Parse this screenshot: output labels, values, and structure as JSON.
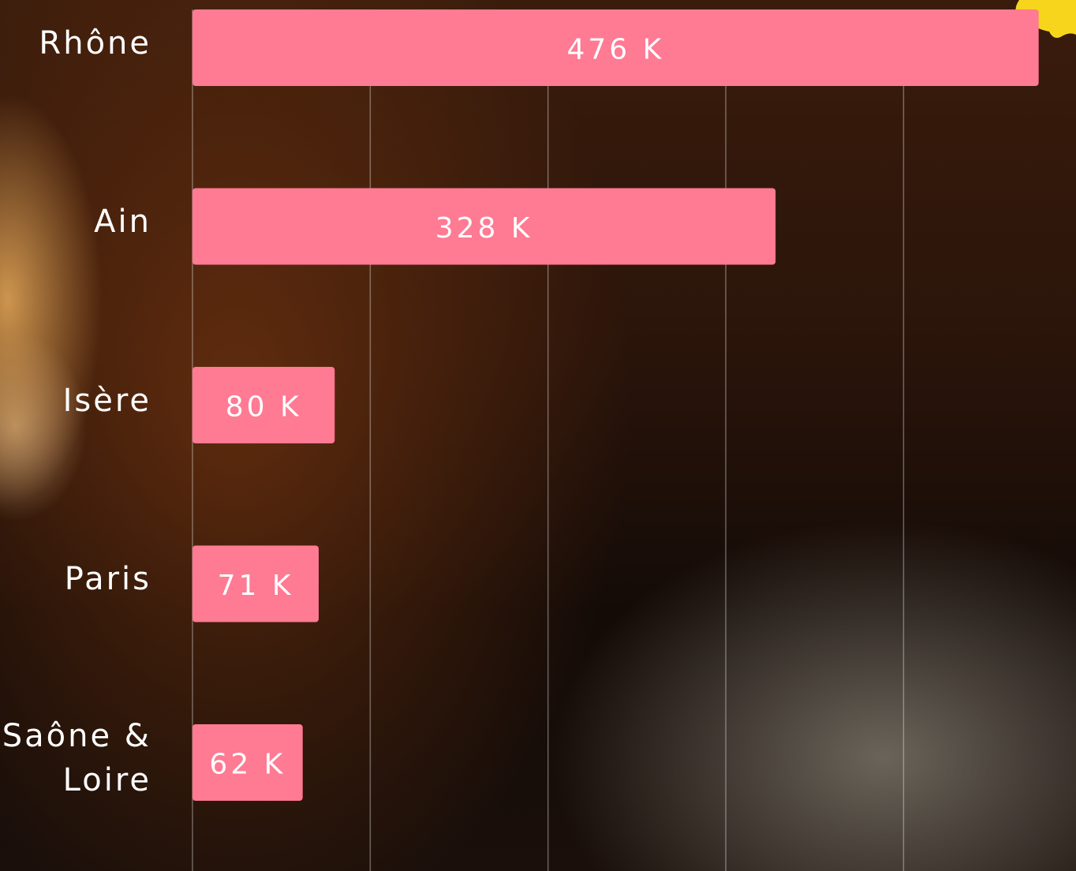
{
  "chart_data": {
    "type": "bar",
    "orientation": "horizontal",
    "categories": [
      "Rhône",
      "Ain",
      "Isère",
      "Paris",
      "Saône & Loire"
    ],
    "values": [
      476,
      328,
      80,
      71,
      62
    ],
    "value_labels": [
      "476 K",
      "328 K",
      "80 K",
      "71 K",
      "62 K"
    ],
    "color": "#ff7a93",
    "xlim": [
      0,
      497
    ],
    "xticks": [
      0,
      100,
      200,
      300,
      400
    ],
    "grid": true
  }
}
